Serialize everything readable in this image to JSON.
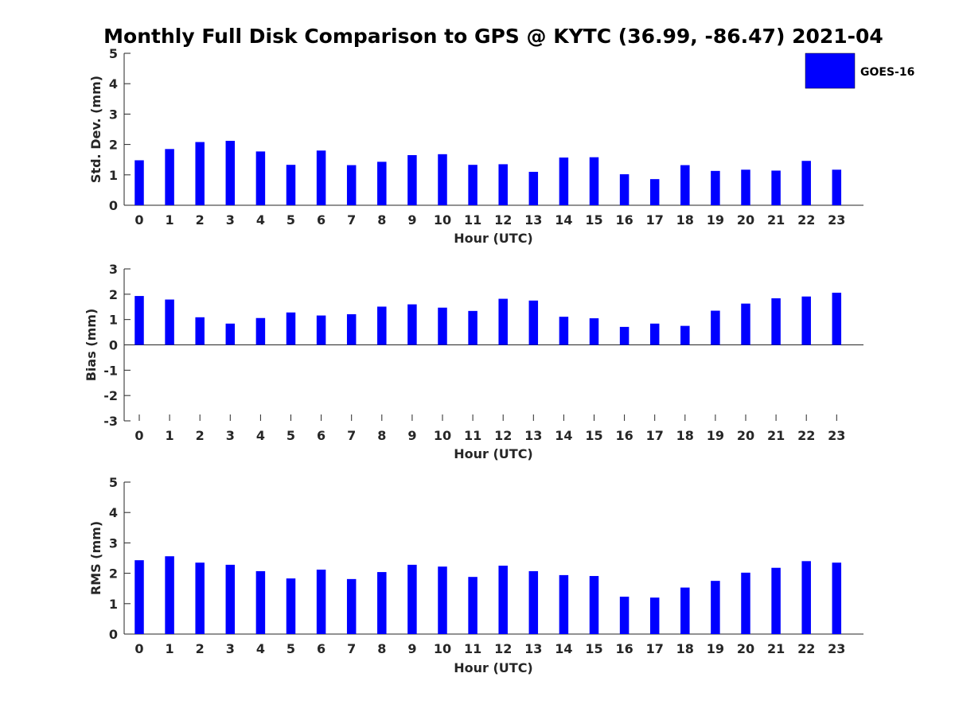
{
  "title": "Monthly Full Disk Comparison to GPS @ KYTC (36.99, -86.47) 2021-04",
  "legend": {
    "label": "GOES-16",
    "color": "#0000ff"
  },
  "chart_data": [
    {
      "type": "bar",
      "xlabel": "Hour (UTC)",
      "ylabel": "Std. Dev. (mm)",
      "ylim": [
        0,
        5
      ],
      "yticks": [
        0,
        1,
        2,
        3,
        4,
        5
      ],
      "categories": [
        "0",
        "1",
        "2",
        "3",
        "4",
        "5",
        "6",
        "7",
        "8",
        "9",
        "10",
        "11",
        "12",
        "13",
        "14",
        "15",
        "16",
        "17",
        "18",
        "19",
        "20",
        "21",
        "22",
        "23"
      ],
      "series": [
        {
          "name": "GOES-16",
          "color": "#0000ff",
          "values": [
            1.48,
            1.85,
            2.08,
            2.12,
            1.77,
            1.33,
            1.8,
            1.32,
            1.43,
            1.65,
            1.68,
            1.33,
            1.35,
            1.1,
            1.57,
            1.58,
            1.02,
            0.86,
            1.32,
            1.13,
            1.17,
            1.14,
            1.46,
            1.17
          ]
        }
      ]
    },
    {
      "type": "bar",
      "xlabel": "Hour (UTC)",
      "ylabel": "Bias (mm)",
      "ylim": [
        -3,
        3
      ],
      "yticks": [
        -3,
        -2,
        -1,
        0,
        1,
        2,
        3
      ],
      "categories": [
        "0",
        "1",
        "2",
        "3",
        "4",
        "5",
        "6",
        "7",
        "8",
        "9",
        "10",
        "11",
        "12",
        "13",
        "14",
        "15",
        "16",
        "17",
        "18",
        "19",
        "20",
        "21",
        "22",
        "23"
      ],
      "series": [
        {
          "name": "GOES-16",
          "color": "#0000ff",
          "values": [
            1.93,
            1.79,
            1.09,
            0.84,
            1.06,
            1.28,
            1.16,
            1.21,
            1.51,
            1.6,
            1.47,
            1.34,
            1.82,
            1.75,
            1.11,
            1.05,
            0.71,
            0.84,
            0.75,
            1.35,
            1.63,
            1.84,
            1.91,
            2.06
          ]
        }
      ]
    },
    {
      "type": "bar",
      "xlabel": "Hour (UTC)",
      "ylabel": "RMS (mm)",
      "ylim": [
        0,
        5
      ],
      "yticks": [
        0,
        1,
        2,
        3,
        4,
        5
      ],
      "categories": [
        "0",
        "1",
        "2",
        "3",
        "4",
        "5",
        "6",
        "7",
        "8",
        "9",
        "10",
        "11",
        "12",
        "13",
        "14",
        "15",
        "16",
        "17",
        "18",
        "19",
        "20",
        "21",
        "22",
        "23"
      ],
      "series": [
        {
          "name": "GOES-16",
          "color": "#0000ff",
          "values": [
            2.43,
            2.56,
            2.35,
            2.28,
            2.07,
            1.83,
            2.12,
            1.81,
            2.04,
            2.28,
            2.22,
            1.88,
            2.25,
            2.07,
            1.94,
            1.91,
            1.23,
            1.2,
            1.53,
            1.75,
            2.02,
            2.18,
            2.4,
            2.35
          ]
        }
      ]
    }
  ]
}
